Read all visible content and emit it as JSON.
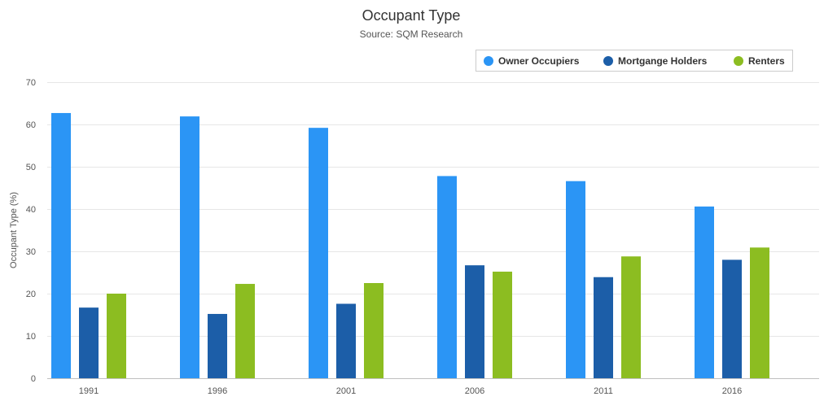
{
  "chart_data": {
    "type": "bar",
    "title": "Occupant Type",
    "subtitle": "Source: SQM Research",
    "xlabel": "",
    "ylabel": "Occupant Type (%)",
    "ylim": [
      0,
      70
    ],
    "yticks": [
      0,
      10,
      20,
      30,
      40,
      50,
      60,
      70
    ],
    "grid": true,
    "legend_position": "top-right",
    "categories": [
      "1991",
      "1996",
      "2001",
      "2006",
      "2011",
      "2016"
    ],
    "series": [
      {
        "name": "Owner Occupiers",
        "color": "#2b95f5",
        "values": [
          62.7,
          61.9,
          59.2,
          47.8,
          46.6,
          40.6
        ]
      },
      {
        "name": "Mortgange Holders",
        "color": "#1c5ea8",
        "values": [
          16.7,
          15.2,
          17.6,
          26.7,
          23.9,
          28.0
        ]
      },
      {
        "name": "Renters",
        "color": "#8cbd21",
        "values": [
          20.0,
          22.3,
          22.5,
          25.2,
          28.8,
          30.9
        ]
      }
    ]
  }
}
